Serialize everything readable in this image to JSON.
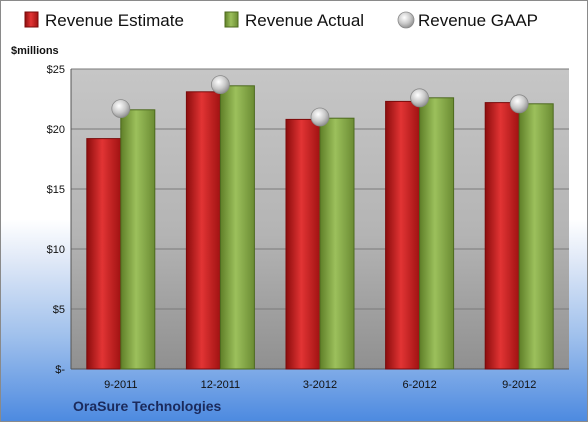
{
  "company": "OraSure Technologies",
  "chart_data": {
    "type": "bar",
    "units_label": "$millions",
    "categories": [
      "9-2011",
      "12-2011",
      "3-2012",
      "6-2012",
      "9-2012"
    ],
    "series": [
      {
        "name": "Revenue Estimate",
        "type": "bar",
        "color": "#d42a2a",
        "values": [
          19.2,
          23.1,
          20.8,
          22.3,
          22.2
        ]
      },
      {
        "name": "Revenue Actual",
        "type": "bar",
        "color": "#8eb14e",
        "values": [
          21.6,
          23.6,
          20.9,
          22.6,
          22.1
        ]
      },
      {
        "name": "Revenue GAAP",
        "type": "scatter",
        "color": "#c8c8c8",
        "values": [
          21.7,
          23.7,
          21.0,
          22.6,
          22.1
        ]
      }
    ],
    "y_ticks": [
      "$-",
      "$5",
      "$10",
      "$15",
      "$20",
      "$25"
    ],
    "ylim": [
      0,
      25
    ],
    "grid": true,
    "legend_position": "top"
  }
}
